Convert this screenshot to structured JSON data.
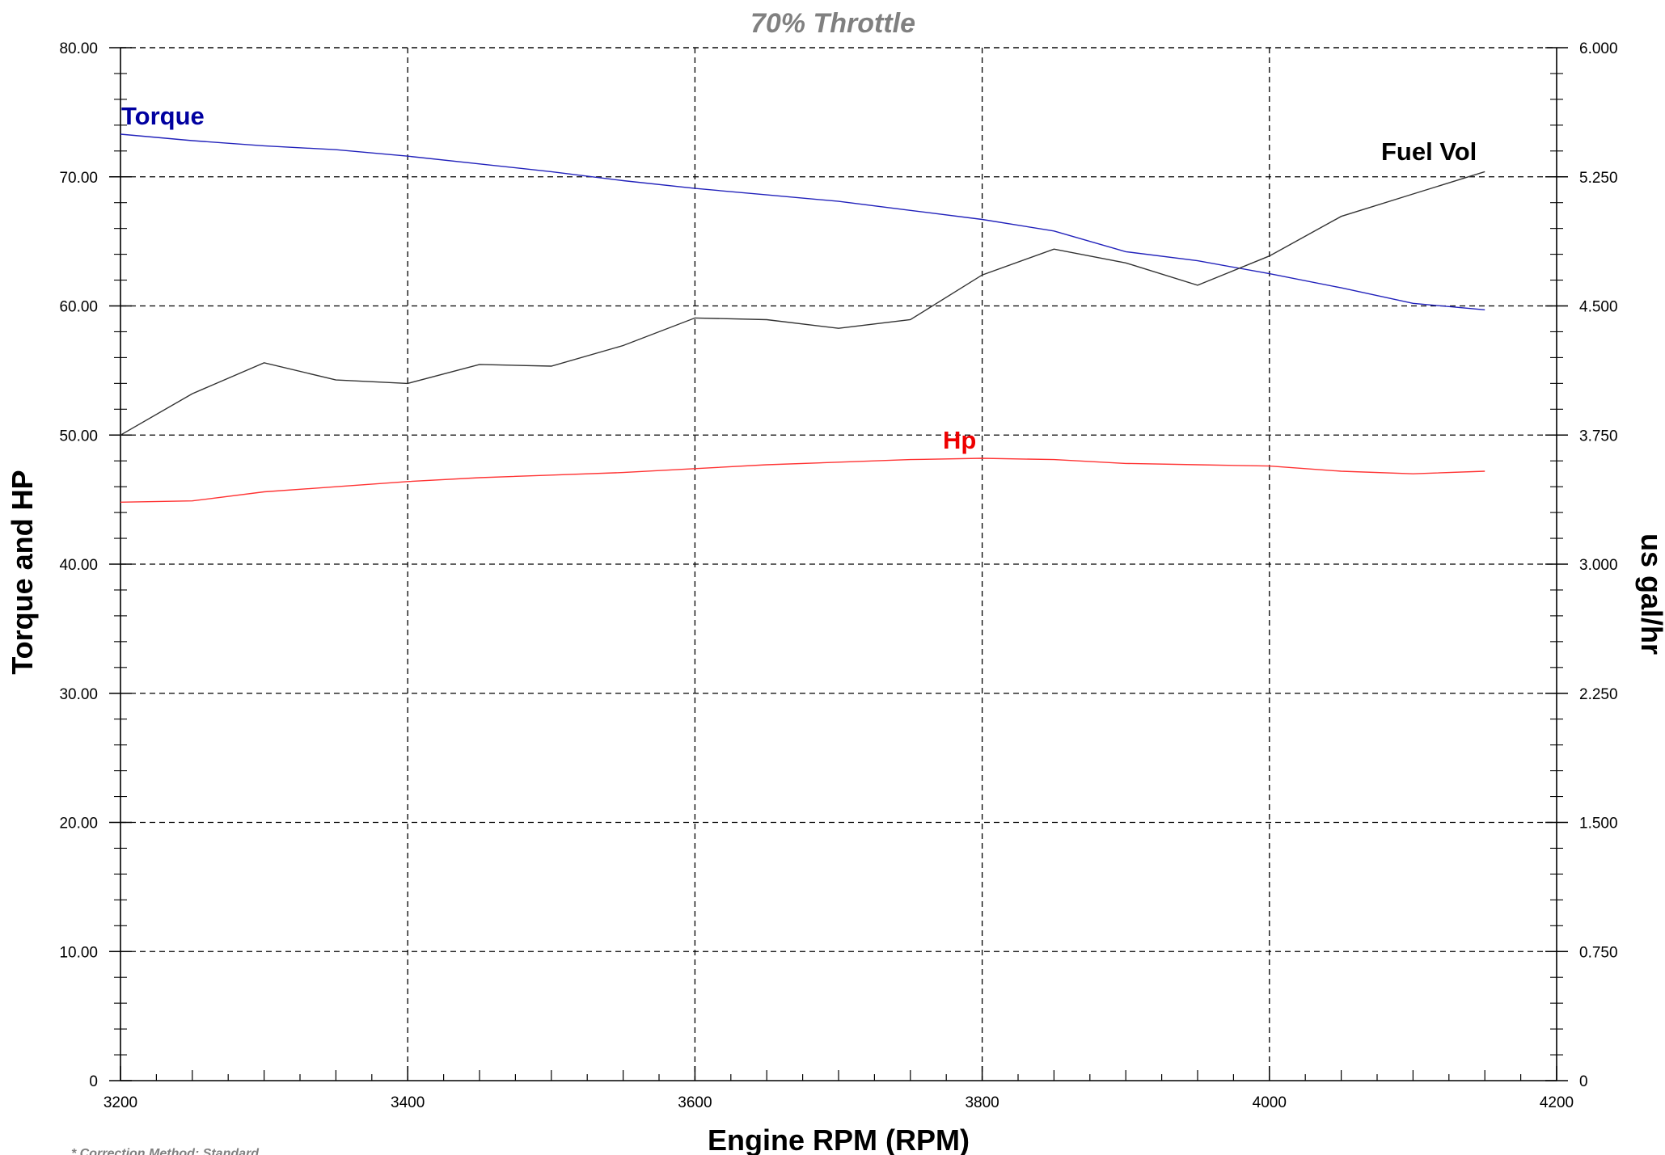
{
  "chart_data": {
    "type": "line",
    "title": "70% Throttle",
    "xlabel": "Engine RPM (RPM)",
    "ylabel_left": "Torque and HP",
    "ylabel_right": "us gal/hr",
    "xlim": [
      3200,
      4200
    ],
    "ylim_left": [
      0,
      80
    ],
    "ylim_right": [
      0,
      6
    ],
    "x_ticks": [
      "3200",
      "3400",
      "3600",
      "3800",
      "4000",
      "4200"
    ],
    "y_left_ticks": [
      "0",
      "10.00",
      "20.00",
      "30.00",
      "40.00",
      "50.00",
      "60.00",
      "70.00",
      "80.00"
    ],
    "y_right_ticks": [
      "0",
      "0.750",
      "1.500",
      "2.250",
      "3.000",
      "3.750",
      "4.500",
      "5.250",
      "6.000"
    ],
    "grid": true,
    "note": "* Correction Method: Standard",
    "series": [
      {
        "name": "Torque",
        "axis": "left",
        "color": "#2222bb",
        "label_color": "#0000a0",
        "x": [
          3200,
          3250,
          3300,
          3350,
          3400,
          3450,
          3500,
          3550,
          3600,
          3650,
          3700,
          3750,
          3800,
          3850,
          3900,
          3950,
          4000,
          4050,
          4100,
          4150
        ],
        "y": [
          73.3,
          72.8,
          72.4,
          72.1,
          71.6,
          71.0,
          70.4,
          69.7,
          69.1,
          68.6,
          68.1,
          67.4,
          66.7,
          65.8,
          64.2,
          63.5,
          62.5,
          61.4,
          60.2,
          59.7
        ]
      },
      {
        "name": "Hp",
        "axis": "left",
        "color": "#ff3333",
        "label_color": "#ee0000",
        "x": [
          3200,
          3250,
          3300,
          3350,
          3400,
          3450,
          3500,
          3550,
          3600,
          3650,
          3700,
          3750,
          3800,
          3850,
          3900,
          3950,
          4000,
          4050,
          4100,
          4150
        ],
        "y": [
          44.8,
          44.9,
          45.6,
          46.0,
          46.4,
          46.7,
          46.9,
          47.1,
          47.4,
          47.7,
          47.9,
          48.1,
          48.2,
          48.1,
          47.8,
          47.7,
          47.6,
          47.2,
          47.0,
          47.2
        ]
      },
      {
        "name": "Fuel Vol",
        "axis": "right",
        "color": "#333333",
        "label_color": "#000000",
        "x": [
          3200,
          3250,
          3300,
          3350,
          3400,
          3450,
          3500,
          3550,
          3600,
          3650,
          3700,
          3750,
          3800,
          3850,
          3900,
          3950,
          4000,
          4050,
          4100,
          4150
        ],
        "y": [
          3.75,
          3.99,
          4.17,
          4.07,
          4.05,
          4.16,
          4.15,
          4.27,
          4.43,
          4.42,
          4.37,
          4.42,
          4.68,
          4.83,
          4.75,
          4.62,
          4.79,
          5.02,
          5.15,
          5.28
        ]
      }
    ]
  }
}
